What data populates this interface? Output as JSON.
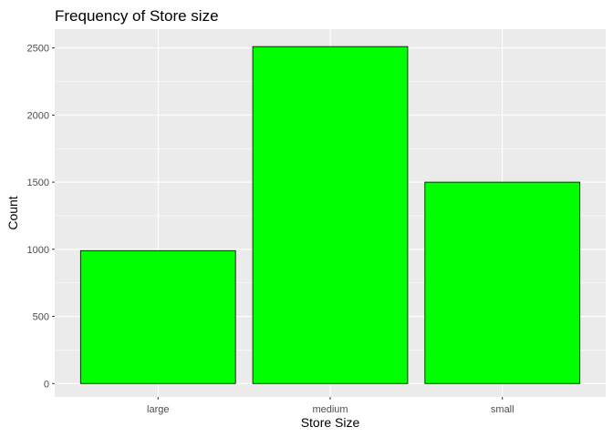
{
  "chart_data": {
    "type": "bar",
    "title": "Frequency of Store size",
    "xlabel": "Store Size",
    "ylabel": "Count",
    "categories": [
      "large",
      "medium",
      "small"
    ],
    "values": [
      990,
      2510,
      1500
    ],
    "ylim": [
      -100,
      2640
    ],
    "yticks": [
      0,
      500,
      1000,
      1500,
      2000,
      2500
    ],
    "grid": true,
    "legend": "none",
    "colors": {
      "bar_fill": "#00ff00",
      "bar_stroke": "#000000",
      "panel_background": "#ebebeb",
      "grid_major": "#ffffff"
    }
  }
}
